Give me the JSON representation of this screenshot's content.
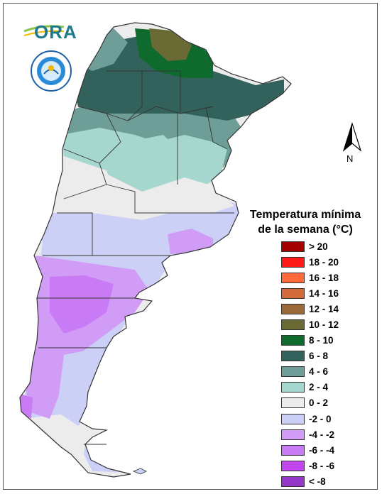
{
  "logo": {
    "text": "ORA"
  },
  "seal": {
    "text": "SERVICIO METEOROLOGICO NACIONAL · ARGENTINA"
  },
  "north_arrow": {
    "label": "N"
  },
  "legend": {
    "title_line1": "Temperatura mínima",
    "title_line2": "de la semana (°C)",
    "items": [
      {
        "label": "> 20",
        "color": "#a50000"
      },
      {
        "label": "18 - 20",
        "color": "#ff1a1a"
      },
      {
        "label": "16 - 18",
        "color": "#ff6a3a"
      },
      {
        "label": "14 - 16",
        "color": "#d36a3a"
      },
      {
        "label": "12 - 14",
        "color": "#9b6a3a"
      },
      {
        "label": "10 - 12",
        "color": "#6a6a35"
      },
      {
        "label": "8 - 10",
        "color": "#0f6b2d"
      },
      {
        "label": "6 - 8",
        "color": "#33615c"
      },
      {
        "label": "4 - 6",
        "color": "#6e9e97"
      },
      {
        "label": "2 - 4",
        "color": "#a6d7cf"
      },
      {
        "label": "0 - 2",
        "color": "#ececec"
      },
      {
        "label": "-2 - 0",
        "color": "#ccd0f7"
      },
      {
        "label": "-4 - -2",
        "color": "#d19cf5"
      },
      {
        "label": "-6 - -4",
        "color": "#c97bf5"
      },
      {
        "label": "-8 - -6",
        "color": "#c246f0"
      },
      {
        "label": "< -8",
        "color": "#9436c8"
      }
    ]
  }
}
